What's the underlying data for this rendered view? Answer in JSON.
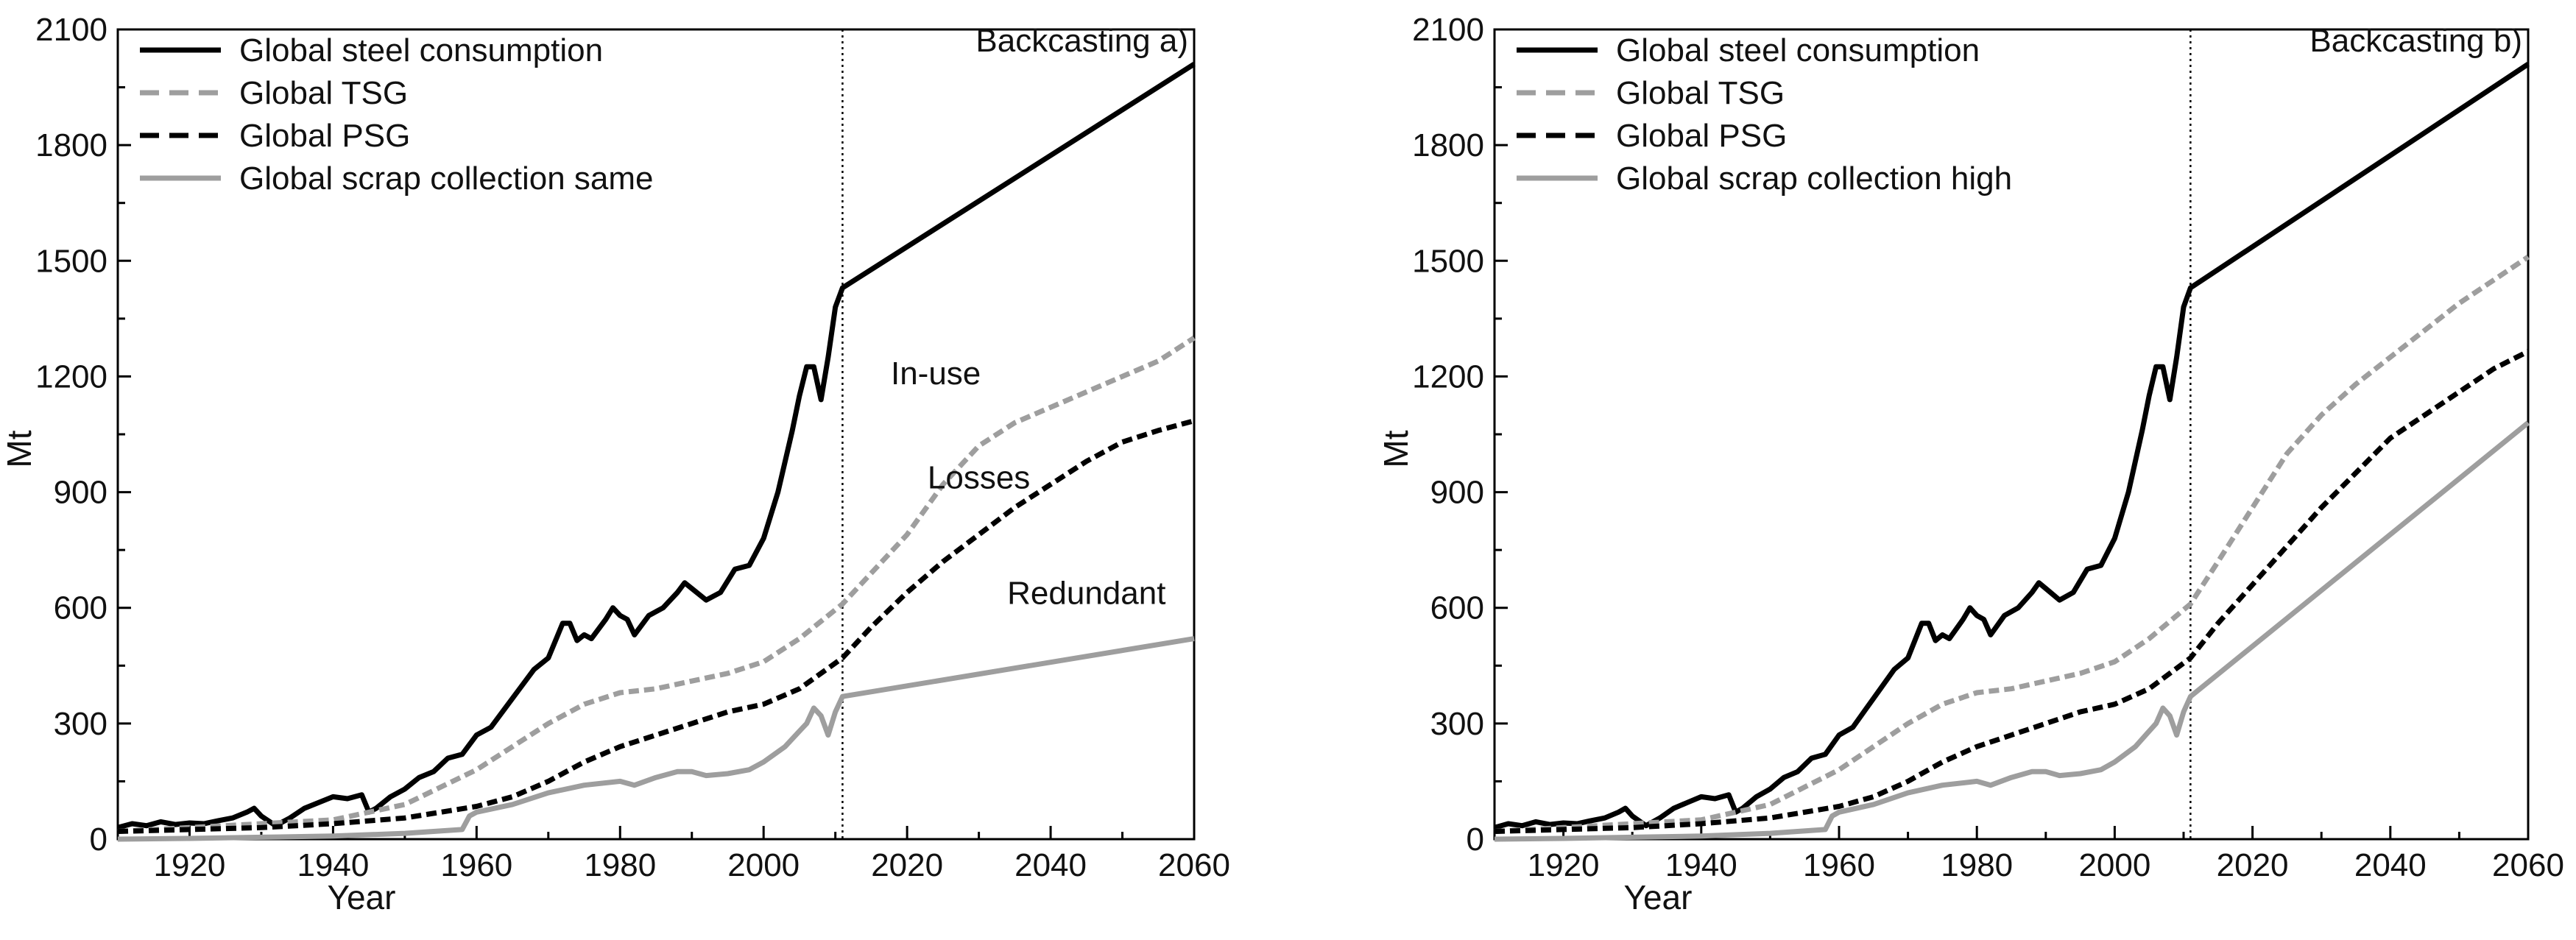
{
  "colors": {
    "consumption": "#000000",
    "tsg": "#9e9e9e",
    "psg": "#000000",
    "scrap": "#9e9e9e",
    "axis": "#000000"
  },
  "chart_data": [
    {
      "type": "line",
      "title": "Backcasting a)",
      "xlabel": "Year",
      "ylabel": "Mt",
      "xlim": [
        1910,
        2060
      ],
      "ylim": [
        0,
        2100
      ],
      "xticks": [
        1920,
        1940,
        1960,
        1980,
        2000,
        2020,
        2040,
        2060
      ],
      "yticks": [
        0,
        300,
        600,
        900,
        1200,
        1500,
        1800,
        2100
      ],
      "xtick_labels": [
        "1920",
        "1940",
        "1960",
        "1980",
        "2000",
        "2020",
        "2040",
        "2060"
      ],
      "ytick_labels": [
        "0",
        "300",
        "600",
        "900",
        "1200",
        "1500",
        "1800",
        "2100"
      ],
      "divider_x": 2011,
      "legend_position": "top-left",
      "annotations": [
        {
          "text": "In-use",
          "x": 2024,
          "y": 1180
        },
        {
          "text": "Losses",
          "x": 2030,
          "y": 910
        },
        {
          "text": "Redundant",
          "x": 2045,
          "y": 610
        }
      ],
      "series": [
        {
          "name": "Global steel consumption",
          "style": "solid",
          "color_key": "consumption",
          "x": [
            1910,
            1912,
            1914,
            1916,
            1918,
            1920,
            1922,
            1924,
            1926,
            1928,
            1929,
            1930,
            1932,
            1934,
            1936,
            1938,
            1940,
            1942,
            1944,
            1945,
            1946,
            1948,
            1950,
            1952,
            1954,
            1956,
            1958,
            1960,
            1962,
            1964,
            1966,
            1968,
            1970,
            1972,
            1973,
            1974,
            1975,
            1976,
            1978,
            1979,
            1980,
            1981,
            1982,
            1984,
            1986,
            1988,
            1989,
            1990,
            1992,
            1994,
            1996,
            1998,
            2000,
            2002,
            2004,
            2005,
            2006,
            2007,
            2008,
            2009,
            2010,
            2011,
            2060
          ],
          "y": [
            30,
            40,
            35,
            45,
            38,
            42,
            40,
            48,
            55,
            70,
            80,
            60,
            35,
            55,
            80,
            95,
            110,
            105,
            115,
            70,
            80,
            110,
            130,
            160,
            175,
            210,
            220,
            270,
            290,
            340,
            390,
            440,
            470,
            560,
            560,
            515,
            530,
            520,
            570,
            600,
            580,
            570,
            530,
            580,
            600,
            640,
            665,
            650,
            620,
            640,
            700,
            710,
            780,
            900,
            1060,
            1150,
            1225,
            1225,
            1140,
            1250,
            1380,
            1430,
            2010
          ]
        },
        {
          "name": "Global TSG",
          "style": "dashed",
          "color_key": "tsg",
          "x": [
            1910,
            1920,
            1930,
            1940,
            1950,
            1960,
            1965,
            1970,
            1975,
            1980,
            1985,
            1990,
            1995,
            2000,
            2005,
            2011,
            2015,
            2020,
            2025,
            2030,
            2035,
            2040,
            2045,
            2050,
            2055,
            2060
          ],
          "y": [
            20,
            30,
            40,
            50,
            90,
            180,
            240,
            300,
            350,
            380,
            390,
            410,
            430,
            460,
            520,
            610,
            690,
            790,
            920,
            1020,
            1080,
            1120,
            1160,
            1200,
            1240,
            1300
          ]
        },
        {
          "name": "Global PSG",
          "style": "dashed",
          "color_key": "psg",
          "x": [
            1910,
            1920,
            1930,
            1940,
            1950,
            1960,
            1965,
            1970,
            1975,
            1980,
            1985,
            1990,
            1995,
            2000,
            2005,
            2011,
            2015,
            2020,
            2025,
            2030,
            2035,
            2040,
            2045,
            2050,
            2055,
            2060
          ],
          "y": [
            20,
            25,
            30,
            40,
            55,
            85,
            110,
            150,
            200,
            240,
            270,
            300,
            330,
            350,
            390,
            470,
            550,
            640,
            720,
            790,
            860,
            920,
            980,
            1030,
            1060,
            1085
          ]
        },
        {
          "name": "Global scrap collection same",
          "style": "solid",
          "color_key": "scrap",
          "x": [
            1910,
            1920,
            1930,
            1940,
            1950,
            1958,
            1959,
            1960,
            1965,
            1970,
            1975,
            1980,
            1982,
            1985,
            1988,
            1990,
            1992,
            1995,
            1998,
            2000,
            2003,
            2005,
            2006,
            2007,
            2008,
            2009,
            2010,
            2011,
            2060
          ],
          "y": [
            0,
            2,
            5,
            8,
            15,
            25,
            60,
            70,
            90,
            120,
            140,
            150,
            140,
            160,
            175,
            175,
            165,
            170,
            180,
            200,
            240,
            280,
            300,
            340,
            320,
            270,
            330,
            370,
            520
          ]
        }
      ]
    },
    {
      "type": "line",
      "title": "Backcasting b)",
      "xlabel": "Year",
      "ylabel": "Mt",
      "xlim": [
        1910,
        2060
      ],
      "ylim": [
        0,
        2100
      ],
      "xticks": [
        1920,
        1940,
        1960,
        1980,
        2000,
        2020,
        2040,
        2060
      ],
      "yticks": [
        0,
        300,
        600,
        900,
        1200,
        1500,
        1800,
        2100
      ],
      "xtick_labels": [
        "1920",
        "1940",
        "1960",
        "1980",
        "2000",
        "2020",
        "2040",
        "2060"
      ],
      "ytick_labels": [
        "0",
        "300",
        "600",
        "900",
        "1200",
        "1500",
        "1800",
        "2100"
      ],
      "divider_x": 2011,
      "legend_position": "top-left",
      "annotations": [],
      "series": [
        {
          "name": "Global steel consumption",
          "style": "solid",
          "color_key": "consumption",
          "x": [
            1910,
            1912,
            1914,
            1916,
            1918,
            1920,
            1922,
            1924,
            1926,
            1928,
            1929,
            1930,
            1932,
            1934,
            1936,
            1938,
            1940,
            1942,
            1944,
            1945,
            1946,
            1948,
            1950,
            1952,
            1954,
            1956,
            1958,
            1960,
            1962,
            1964,
            1966,
            1968,
            1970,
            1972,
            1973,
            1974,
            1975,
            1976,
            1978,
            1979,
            1980,
            1981,
            1982,
            1984,
            1986,
            1988,
            1989,
            1990,
            1992,
            1994,
            1996,
            1998,
            2000,
            2002,
            2004,
            2005,
            2006,
            2007,
            2008,
            2009,
            2010,
            2011,
            2060
          ],
          "y": [
            30,
            40,
            35,
            45,
            38,
            42,
            40,
            48,
            55,
            70,
            80,
            60,
            35,
            55,
            80,
            95,
            110,
            105,
            115,
            70,
            80,
            110,
            130,
            160,
            175,
            210,
            220,
            270,
            290,
            340,
            390,
            440,
            470,
            560,
            560,
            515,
            530,
            520,
            570,
            600,
            580,
            570,
            530,
            580,
            600,
            640,
            665,
            650,
            620,
            640,
            700,
            710,
            780,
            900,
            1060,
            1150,
            1225,
            1225,
            1140,
            1250,
            1380,
            1430,
            2010
          ]
        },
        {
          "name": "Global TSG",
          "style": "dashed",
          "color_key": "tsg",
          "x": [
            1910,
            1920,
            1930,
            1940,
            1950,
            1960,
            1965,
            1970,
            1975,
            1980,
            1985,
            1990,
            1995,
            2000,
            2005,
            2011,
            2015,
            2020,
            2025,
            2030,
            2035,
            2040,
            2045,
            2050,
            2055,
            2060
          ],
          "y": [
            20,
            30,
            40,
            50,
            90,
            180,
            240,
            300,
            350,
            380,
            390,
            410,
            430,
            460,
            520,
            610,
            720,
            860,
            1000,
            1100,
            1180,
            1250,
            1320,
            1390,
            1450,
            1510
          ]
        },
        {
          "name": "Global PSG",
          "style": "dashed",
          "color_key": "psg",
          "x": [
            1910,
            1920,
            1930,
            1940,
            1950,
            1960,
            1965,
            1970,
            1975,
            1980,
            1985,
            1990,
            1995,
            2000,
            2005,
            2011,
            2015,
            2020,
            2025,
            2030,
            2035,
            2040,
            2045,
            2050,
            2055,
            2060
          ],
          "y": [
            20,
            25,
            30,
            40,
            55,
            85,
            110,
            150,
            200,
            240,
            270,
            300,
            330,
            350,
            390,
            470,
            560,
            660,
            760,
            860,
            950,
            1040,
            1100,
            1160,
            1220,
            1265
          ]
        },
        {
          "name": "Global scrap collection high",
          "style": "solid",
          "color_key": "scrap",
          "x": [
            1910,
            1920,
            1930,
            1940,
            1950,
            1958,
            1959,
            1960,
            1965,
            1970,
            1975,
            1980,
            1982,
            1985,
            1988,
            1990,
            1992,
            1995,
            1998,
            2000,
            2003,
            2005,
            2006,
            2007,
            2008,
            2009,
            2010,
            2011,
            2060
          ],
          "y": [
            0,
            2,
            5,
            8,
            15,
            25,
            60,
            70,
            90,
            120,
            140,
            150,
            140,
            160,
            175,
            175,
            165,
            170,
            180,
            200,
            240,
            280,
            300,
            340,
            320,
            270,
            330,
            370,
            1080
          ]
        }
      ]
    }
  ]
}
